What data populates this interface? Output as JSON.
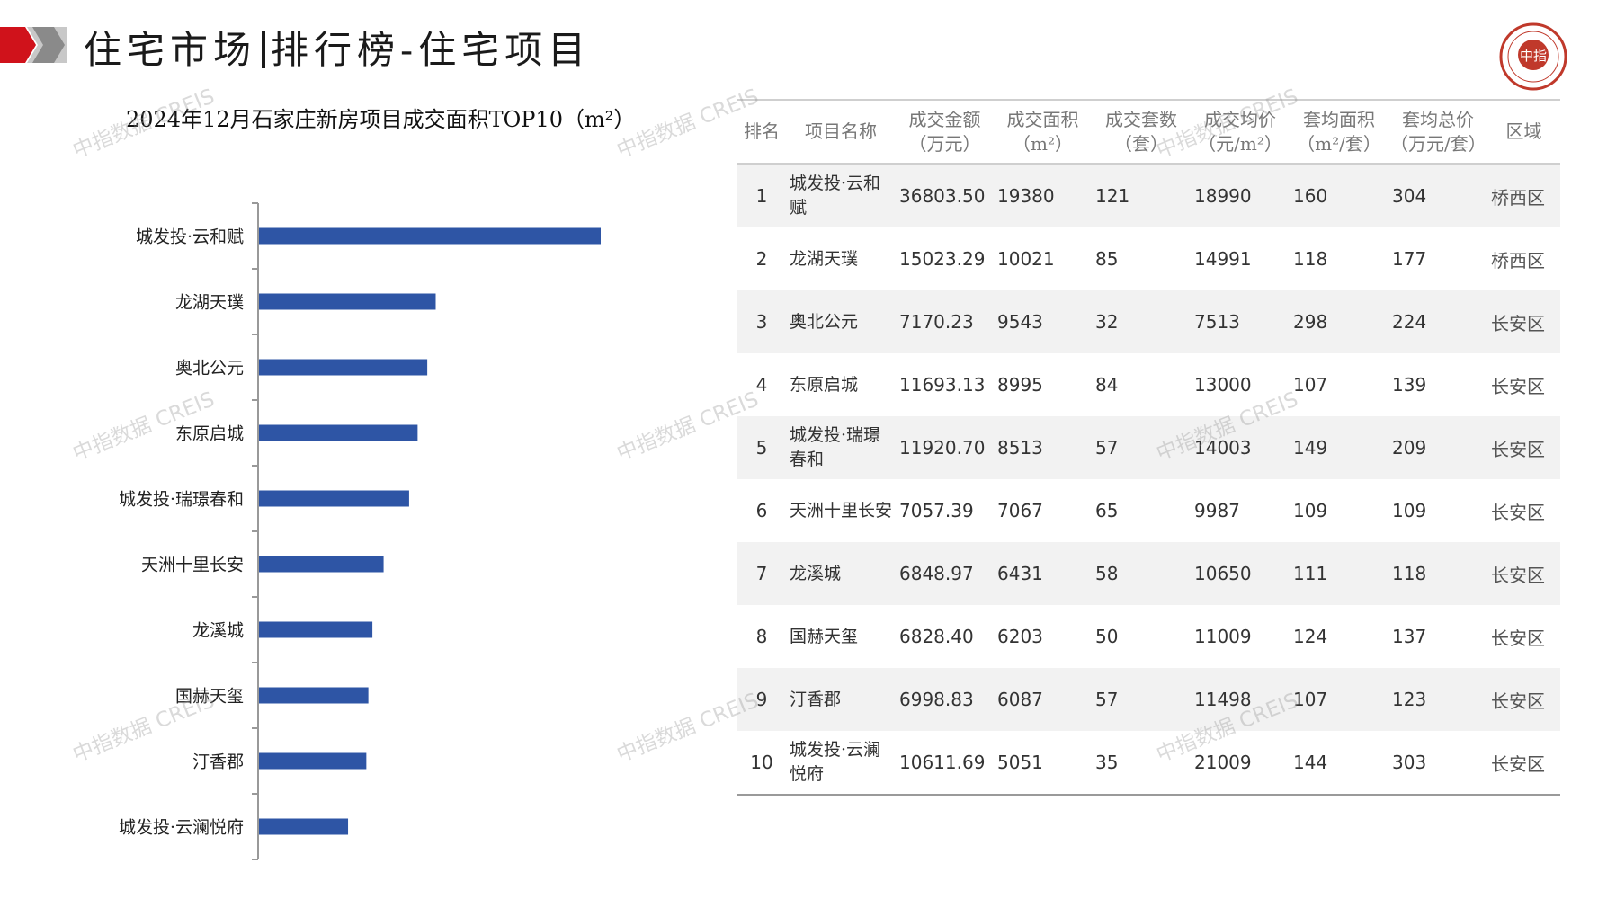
{
  "header": {
    "title_left": "住宅市场",
    "title_right": "排行榜-住宅项目",
    "accent_color": "#d0121b",
    "logo_text": "中指"
  },
  "chart_data": {
    "type": "bar",
    "orientation": "horizontal",
    "title": "2024年12月石家庄新房项目成交面积TOP10（m²）",
    "categories": [
      "城发投·云和赋",
      "龙湖天璞",
      "奥北公元",
      "东原启城",
      "城发投·瑞璟春和",
      "天洲十里长安",
      "龙溪城",
      "国赫天玺",
      "汀香郡",
      "城发投·云澜悦府"
    ],
    "values": [
      19380,
      10021,
      9543,
      8995,
      8513,
      7067,
      6431,
      6203,
      6087,
      5051
    ],
    "xlim": [
      0,
      19380
    ],
    "bar_color": "#2e55a5",
    "grid": false
  },
  "table": {
    "headers": [
      "排名",
      "项目名称",
      "成交金额（万元）",
      "成交面积（m²）",
      "成交套数（套）",
      "成交均价（元/m²）",
      "套均面积（m²/套）",
      "套均总价（万元/套）",
      "区域"
    ],
    "rows": [
      [
        "1",
        "城发投·云和赋",
        "36803.50",
        "19380",
        "121",
        "18990",
        "160",
        "304",
        "桥西区"
      ],
      [
        "2",
        "龙湖天璞",
        "15023.29",
        "10021",
        "85",
        "14991",
        "118",
        "177",
        "桥西区"
      ],
      [
        "3",
        "奥北公元",
        "7170.23",
        "9543",
        "32",
        "7513",
        "298",
        "224",
        "长安区"
      ],
      [
        "4",
        "东原启城",
        "11693.13",
        "8995",
        "84",
        "13000",
        "107",
        "139",
        "长安区"
      ],
      [
        "5",
        "城发投·瑞璟春和",
        "11920.70",
        "8513",
        "57",
        "14003",
        "149",
        "209",
        "长安区"
      ],
      [
        "6",
        "天洲十里长安",
        "7057.39",
        "7067",
        "65",
        "9987",
        "109",
        "109",
        "长安区"
      ],
      [
        "7",
        "龙溪城",
        "6848.97",
        "6431",
        "58",
        "10650",
        "111",
        "118",
        "长安区"
      ],
      [
        "8",
        "国赫天玺",
        "6828.40",
        "6203",
        "50",
        "11009",
        "124",
        "137",
        "长安区"
      ],
      [
        "9",
        "汀香郡",
        "6998.83",
        "6087",
        "57",
        "11498",
        "107",
        "123",
        "长安区"
      ],
      [
        "10",
        "城发投·云澜悦府",
        "10611.69",
        "5051",
        "35",
        "21009",
        "144",
        "303",
        "长安区"
      ]
    ]
  },
  "watermark": "中指数据 CREIS"
}
